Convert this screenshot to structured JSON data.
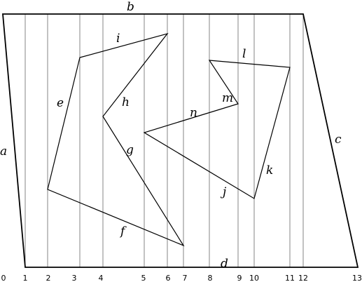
{
  "diagram": {
    "vertical_lines": [
      "1",
      "2",
      "3",
      "4",
      "5",
      "6",
      "7",
      "8",
      "9",
      "10",
      "11",
      "12"
    ],
    "x_ticks": [
      "0",
      "1",
      "2",
      "3",
      "4",
      "5",
      "6",
      "7",
      "8",
      "9",
      "10",
      "11",
      "12",
      "13"
    ],
    "edges": {
      "a": "a",
      "b": "b",
      "c": "c",
      "d": "d",
      "e": "e",
      "f": "f",
      "g": "g",
      "h": "h",
      "i": "i",
      "j": "j",
      "k": "k",
      "l": "l",
      "m": "m",
      "n": "n"
    }
  }
}
